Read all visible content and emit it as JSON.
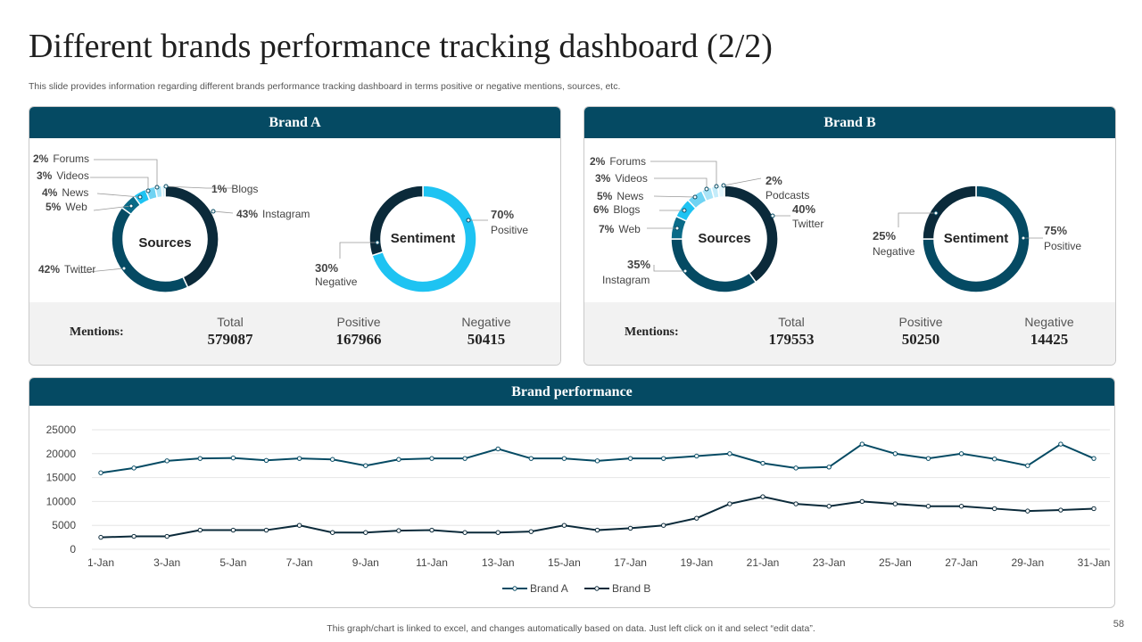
{
  "header": {
    "title": "Different brands performance tracking dashboard (2/2)",
    "subtitle": "This slide provides information regarding different brands performance tracking dashboard in terms positive or negative mentions, sources, etc."
  },
  "brand_a": {
    "title": "Brand A",
    "mentions_label": "Mentions:",
    "total_label": "Total",
    "total": "579087",
    "positive_label": "Positive",
    "positive": "167966",
    "negative_label": "Negative",
    "negative": "50415"
  },
  "brand_b": {
    "title": "Brand B",
    "mentions_label": "Mentions:",
    "total_label": "Total",
    "total": "179553",
    "positive_label": "Positive",
    "positive": "50250",
    "negative_label": "Negative",
    "negative": "14425"
  },
  "performance": {
    "title": "Brand performance"
  },
  "footer": {
    "note": "This graph/chart is linked to excel,  and changes automatically based on data. Just left click on it and select “edit data”.",
    "page_number": "58"
  },
  "colors": {
    "dark": "#0b2a3a",
    "teal": "#054a63",
    "cyan": "#1ec3f2",
    "light": "#8fdcf5",
    "pale": "#c4ecfa",
    "grid": "#e6e6e6"
  },
  "chart_data": [
    {
      "id": "brand_a_sources",
      "type": "pie",
      "center_label": "Sources",
      "slices": [
        {
          "name": "Instagram",
          "pct": "43%",
          "value": 43,
          "color": "#0b2a3a"
        },
        {
          "name": "Twitter",
          "pct": "42%",
          "value": 42,
          "color": "#054a63"
        },
        {
          "name": "Web",
          "pct": "5%",
          "value": 5,
          "color": "#0a6b88"
        },
        {
          "name": "News",
          "pct": "4%",
          "value": 4,
          "color": "#1ec3f2"
        },
        {
          "name": "Videos",
          "pct": "3%",
          "value": 3,
          "color": "#6fd3f3"
        },
        {
          "name": "Forums",
          "pct": "2%",
          "value": 2,
          "color": "#a9e4f7"
        },
        {
          "name": "Blogs",
          "pct": "1%",
          "value": 1,
          "color": "#d3f1fb"
        }
      ]
    },
    {
      "id": "brand_a_sentiment",
      "type": "pie",
      "center_label": "Sentiment",
      "slices": [
        {
          "name": "Positive",
          "pct": "70%",
          "value": 70,
          "color": "#1ec3f2"
        },
        {
          "name": "Negative",
          "pct": "30%",
          "value": 30,
          "color": "#0b2a3a"
        }
      ]
    },
    {
      "id": "brand_b_sources",
      "type": "pie",
      "center_label": "Sources",
      "slices": [
        {
          "name": "Twitter",
          "pct": "40%",
          "value": 40,
          "color": "#0b2a3a"
        },
        {
          "name": "Instagram",
          "pct": "35%",
          "value": 35,
          "color": "#054a63"
        },
        {
          "name": "Web",
          "pct": "7%",
          "value": 7,
          "color": "#0a6b88"
        },
        {
          "name": "Blogs",
          "pct": "6%",
          "value": 6,
          "color": "#1ec3f2"
        },
        {
          "name": "News",
          "pct": "5%",
          "value": 5,
          "color": "#6fd3f3"
        },
        {
          "name": "Videos",
          "pct": "3%",
          "value": 3,
          "color": "#a9e4f7"
        },
        {
          "name": "Forums",
          "pct": "2%",
          "value": 2,
          "color": "#c4ecfa"
        },
        {
          "name": "Podcasts",
          "pct": "2%",
          "value": 2,
          "color": "#e3f6fc"
        }
      ]
    },
    {
      "id": "brand_b_sentiment",
      "type": "pie",
      "center_label": "Sentiment",
      "slices": [
        {
          "name": "Positive",
          "pct": "75%",
          "value": 75,
          "color": "#054a63"
        },
        {
          "name": "Negative",
          "pct": "25%",
          "value": 25,
          "color": "#0b2a3a"
        }
      ]
    },
    {
      "id": "brand_performance",
      "type": "line",
      "title": "Brand performance",
      "xtick_labels": [
        "1-Jan",
        "3-Jan",
        "5-Jan",
        "7-Jan",
        "9-Jan",
        "11-Jan",
        "13-Jan",
        "15-Jan",
        "17-Jan",
        "19-Jan",
        "21-Jan",
        "23-Jan",
        "25-Jan",
        "27-Jan",
        "29-Jan",
        "31-Jan"
      ],
      "ylim": [
        0,
        25000
      ],
      "yticks": [
        0,
        5000,
        10000,
        15000,
        20000,
        25000
      ],
      "series": [
        {
          "name": "Brand A",
          "color": "#054a63",
          "values": [
            16000,
            17000,
            18500,
            19000,
            19100,
            18600,
            19000,
            18800,
            17500,
            18800,
            19000,
            19000,
            21000,
            19000,
            19000,
            18500,
            19000,
            19000,
            19500,
            20000,
            18000,
            17000,
            17200,
            22000,
            20000,
            19000,
            20000,
            18900,
            17500,
            22000,
            19000
          ]
        },
        {
          "name": "Brand B",
          "color": "#0b2a3a",
          "values": [
            2500,
            2700,
            2700,
            4000,
            4000,
            4000,
            5000,
            3500,
            3500,
            3900,
            4000,
            3500,
            3500,
            3700,
            5000,
            4000,
            4400,
            5000,
            6500,
            9500,
            11000,
            9500,
            9000,
            10000,
            9500,
            9000,
            9000,
            8500,
            8000,
            8200,
            8500
          ]
        }
      ]
    }
  ]
}
